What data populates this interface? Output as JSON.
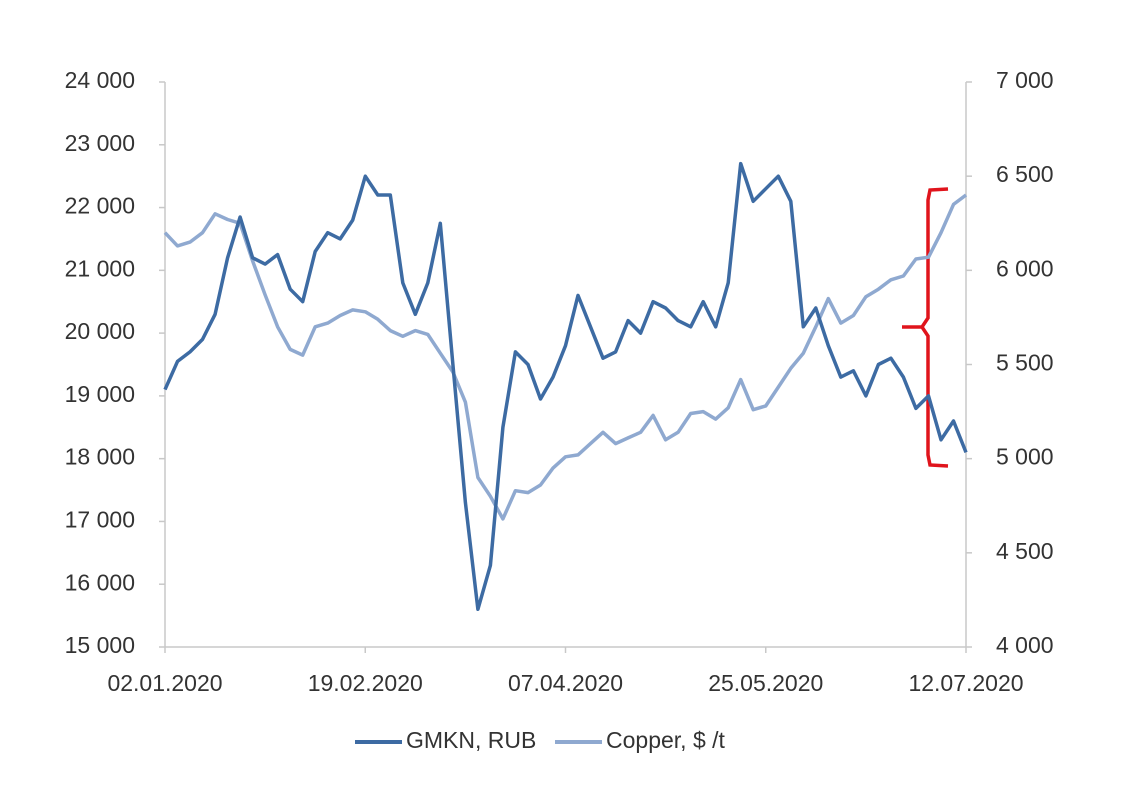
{
  "chart_data": {
    "type": "line",
    "x": [
      "02.01.2020",
      "05.01.2020",
      "08.01.2020",
      "11.01.2020",
      "14.01.2020",
      "17.01.2020",
      "20.01.2020",
      "23.01.2020",
      "26.01.2020",
      "29.01.2020",
      "01.02.2020",
      "04.02.2020",
      "07.02.2020",
      "10.02.2020",
      "13.02.2020",
      "16.02.2020",
      "19.02.2020",
      "22.02.2020",
      "25.02.2020",
      "28.02.2020",
      "02.03.2020",
      "05.03.2020",
      "08.03.2020",
      "11.03.2020",
      "14.03.2020",
      "17.03.2020",
      "20.03.2020",
      "23.03.2020",
      "26.03.2020",
      "29.03.2020",
      "01.04.2020",
      "04.04.2020",
      "07.04.2020",
      "10.04.2020",
      "13.04.2020",
      "16.04.2020",
      "19.04.2020",
      "22.04.2020",
      "25.04.2020",
      "28.04.2020",
      "01.05.2020",
      "04.05.2020",
      "07.05.2020",
      "10.05.2020",
      "13.05.2020",
      "16.05.2020",
      "19.05.2020",
      "22.05.2020",
      "25.05.2020",
      "28.05.2020",
      "31.05.2020",
      "03.06.2020",
      "06.06.2020",
      "09.06.2020",
      "12.06.2020",
      "15.06.2020",
      "18.06.2020",
      "21.06.2020",
      "24.06.2020",
      "27.06.2020",
      "30.06.2020",
      "03.07.2020",
      "06.07.2020",
      "09.07.2020",
      "12.07.2020"
    ],
    "series": [
      {
        "name": "GMKN, RUB",
        "color": "#3d6ba3",
        "values": [
          19100,
          19550,
          19700,
          19900,
          20300,
          21200,
          21850,
          21200,
          21100,
          21250,
          20700,
          20500,
          21300,
          21600,
          21500,
          21800,
          22500,
          22200,
          22200,
          20800,
          20300,
          20800,
          21750,
          19500,
          17300,
          15600,
          16300,
          18500,
          19700,
          19500,
          18950,
          19300,
          19800,
          20600,
          20100,
          19600,
          19700,
          20200,
          20000,
          20500,
          20400,
          20200,
          20100,
          20500,
          20100,
          20800,
          22700,
          22100,
          22300,
          22500,
          22100,
          20100,
          20400,
          19800,
          19300,
          19400,
          19000,
          19500,
          19600,
          19300,
          18800,
          19000,
          18300,
          18600,
          18100
        ]
      },
      {
        "name": "Copper, $ /t",
        "color": "#8fa9d0",
        "axis": "y2",
        "values": [
          6200,
          6130,
          6150,
          6200,
          6300,
          6270,
          6250,
          6050,
          5870,
          5700,
          5580,
          5550,
          5700,
          5720,
          5760,
          5790,
          5780,
          5740,
          5680,
          5650,
          5680,
          5660,
          5560,
          5460,
          5300,
          4900,
          4800,
          4680,
          4830,
          4820,
          4860,
          4950,
          5010,
          5020,
          5080,
          5140,
          5080,
          5110,
          5140,
          5230,
          5100,
          5140,
          5240,
          5250,
          5210,
          5270,
          5420,
          5260,
          5280,
          5380,
          5480,
          5560,
          5700,
          5850,
          5720,
          5760,
          5860,
          5900,
          5950,
          5970,
          6060,
          6070,
          6200,
          6350,
          6400
        ]
      }
    ],
    "xlim": [
      "02.01.2020",
      "12.07.2020"
    ],
    "xticks": [
      "02.01.2020",
      "19.02.2020",
      "07.04.2020",
      "25.05.2020",
      "12.07.2020"
    ],
    "ylim": [
      15000,
      24000
    ],
    "yticks": [
      {
        "value": 15000,
        "label": "15 000"
      },
      {
        "value": 16000,
        "label": "16 000"
      },
      {
        "value": 17000,
        "label": "17 000"
      },
      {
        "value": 18000,
        "label": "18 000"
      },
      {
        "value": 19000,
        "label": "19 000"
      },
      {
        "value": 20000,
        "label": "20 000"
      },
      {
        "value": 21000,
        "label": "21 000"
      },
      {
        "value": 22000,
        "label": "22 000"
      },
      {
        "value": 23000,
        "label": "23 000"
      },
      {
        "value": 24000,
        "label": "24 000"
      }
    ],
    "y2lim": [
      4000,
      7000
    ],
    "y2ticks": [
      {
        "value": 4000,
        "label": "4 000"
      },
      {
        "value": 4500,
        "label": "4 500"
      },
      {
        "value": 5000,
        "label": "5 000"
      },
      {
        "value": 5500,
        "label": "5 500"
      },
      {
        "value": 6000,
        "label": "6 000"
      },
      {
        "value": 6500,
        "label": "6 500"
      },
      {
        "value": 7000,
        "label": "7 000"
      }
    ],
    "legend": "bottom"
  }
}
